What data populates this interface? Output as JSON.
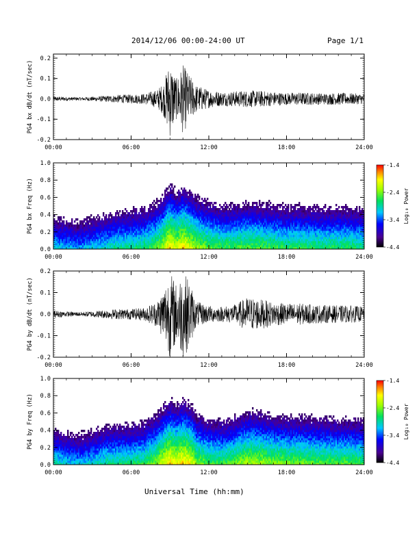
{
  "header": {
    "title": "2014/12/06  00:00-24:00 UT",
    "page": "Page 1/1"
  },
  "footer": {
    "xlabel": "Universal Time (hh:mm)"
  },
  "chart_data": [
    {
      "type": "line",
      "ylabel": "PG4 bx dB/dt (nT/sec)",
      "xlim": [
        "00:00",
        "24:00"
      ],
      "xticks": [
        "00:00",
        "06:00",
        "12:00",
        "18:00",
        "24:00"
      ],
      "ylim": [
        -0.2,
        0.22
      ],
      "yticks": [
        "-0.2",
        "-0.1",
        "0.0",
        "0.1",
        "0.2"
      ],
      "envelope": {
        "hours": [
          0,
          1,
          2,
          3,
          4,
          5,
          6,
          7,
          8,
          8.5,
          9,
          9.5,
          10,
          10.5,
          11,
          12,
          13,
          14,
          15,
          16,
          17,
          18,
          19,
          20,
          21,
          22,
          23,
          24
        ],
        "amplitude": [
          0.012,
          0.01,
          0.008,
          0.011,
          0.015,
          0.02,
          0.022,
          0.026,
          0.045,
          0.08,
          0.19,
          0.1,
          0.17,
          0.12,
          0.07,
          0.045,
          0.035,
          0.038,
          0.042,
          0.04,
          0.035,
          0.03,
          0.032,
          0.03,
          0.028,
          0.03,
          0.028,
          0.025
        ]
      }
    },
    {
      "type": "heatmap",
      "ylabel": "PG4 bx Freq (Hz)",
      "xlim": [
        "00:00",
        "24:00"
      ],
      "xticks": [
        "00:00",
        "06:00",
        "12:00",
        "18:00",
        "24:00"
      ],
      "ylim": [
        0.0,
        1.0
      ],
      "yticks": [
        "0.0",
        "0.2",
        "0.4",
        "0.6",
        "0.8",
        "1.0"
      ],
      "colorbar": {
        "label": "Log₁₀ Power",
        "ticks": [
          "-1.4",
          "-2.4",
          "-3.4",
          "-4.4"
        ],
        "range": [
          -4.4,
          -1.4
        ]
      }
    },
    {
      "type": "line",
      "ylabel": "PG4 by dB/dt (nT/sec)",
      "xlim": [
        "00:00",
        "24:00"
      ],
      "xticks": [
        "00:00",
        "06:00",
        "12:00",
        "18:00",
        "24:00"
      ],
      "ylim": [
        -0.2,
        0.2
      ],
      "yticks": [
        "-0.2",
        "-0.1",
        "0.0",
        "0.1",
        "0.2"
      ],
      "envelope": {
        "hours": [
          0,
          1,
          2,
          3,
          4,
          5,
          6,
          7,
          8,
          8.5,
          9,
          9.5,
          10,
          10.5,
          11,
          12,
          13,
          14,
          15,
          16,
          17,
          18,
          19,
          20,
          21,
          22,
          23,
          24
        ],
        "amplitude": [
          0.018,
          0.012,
          0.01,
          0.014,
          0.02,
          0.024,
          0.025,
          0.03,
          0.06,
          0.12,
          0.2,
          0.14,
          0.2,
          0.16,
          0.06,
          0.04,
          0.035,
          0.045,
          0.08,
          0.07,
          0.055,
          0.05,
          0.05,
          0.045,
          0.042,
          0.04,
          0.04,
          0.035
        ]
      }
    },
    {
      "type": "heatmap",
      "ylabel": "PG4 by Freq (Hz)",
      "xlim": [
        "00:00",
        "24:00"
      ],
      "xticks": [
        "00:00",
        "06:00",
        "12:00",
        "18:00",
        "24:00"
      ],
      "ylim": [
        0.0,
        1.0
      ],
      "yticks": [
        "0.0",
        "0.2",
        "0.4",
        "0.6",
        "0.8",
        "1.0"
      ],
      "colorbar": {
        "label": "Log₁₀ Power",
        "ticks": [
          "-1.4",
          "-2.4",
          "-3.4",
          "-4.4"
        ],
        "range": [
          -4.4,
          -1.4
        ]
      }
    }
  ]
}
